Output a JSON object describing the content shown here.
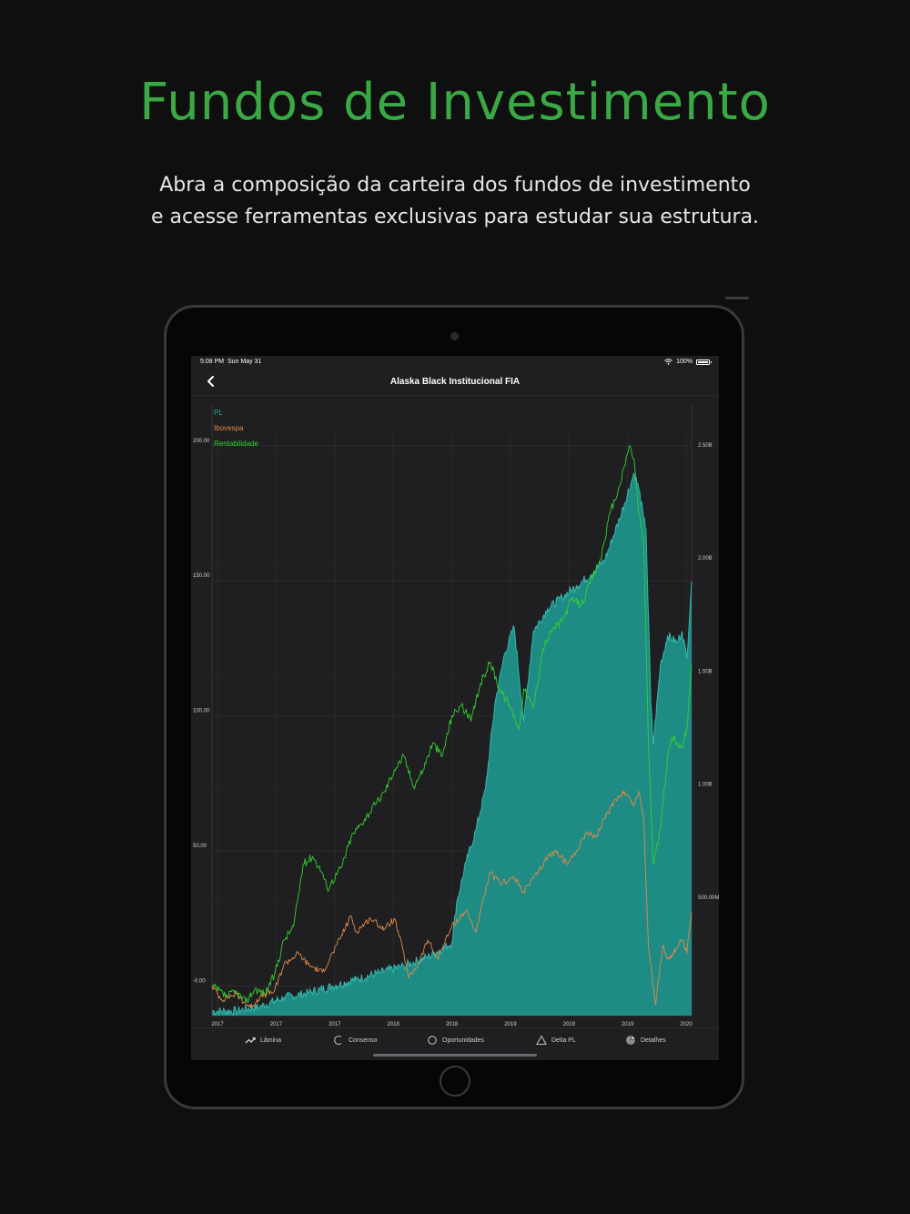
{
  "promo": {
    "title": "Fundos de Investimento",
    "subtitle_line1": "Abra a composição da carteira dos fundos de investimento",
    "subtitle_line2": "e acesse ferramentas exclusivas para estudar sua estrutura."
  },
  "status_bar": {
    "time": "5:08 PM",
    "date": "Sun May 31",
    "battery": "100%"
  },
  "nav": {
    "title": "Alaska Black Institucional FIA",
    "back_icon": "chevron-left-icon"
  },
  "tabs": [
    {
      "label": "Lâmina",
      "icon": "trend-line-icon"
    },
    {
      "label": "Consenso",
      "icon": "arc-icon"
    },
    {
      "label": "Oportunidades",
      "icon": "circle-icon"
    },
    {
      "label": "Delta PL",
      "icon": "triangle-icon"
    },
    {
      "label": "Detalhes",
      "icon": "pie-icon"
    }
  ],
  "colors": {
    "pl": "#1fa59a",
    "ibovespa": "#e08a4a",
    "rentabilidade": "#33d12f",
    "accent": "#3aa845"
  },
  "chart_data": {
    "type": "line",
    "legend_position": "top-left",
    "grid": true,
    "x_ticks": [
      "2017",
      "2017",
      "2017",
      "2018",
      "2018",
      "2019",
      "2019",
      "2019",
      "2020"
    ],
    "y_left_ticks": [
      "-0.00",
      "50.00",
      "100.00",
      "150.00",
      "200.00"
    ],
    "y_left_values": [
      0,
      50,
      100,
      150,
      200
    ],
    "y_left_range": [
      -11,
      205
    ],
    "y_right_ticks": [
      "500.00M",
      "1.00B",
      "1.50B",
      "2.00B",
      "2.50B"
    ],
    "y_right_values": [
      0.5,
      1.0,
      1.5,
      2.0,
      2.5
    ],
    "y_right_range": [
      0,
      2.58
    ],
    "t_range": [
      0,
      100
    ],
    "series": [
      {
        "name": "PL",
        "axis": "right",
        "kind": "area",
        "points": [
          [
            0,
            0.02
          ],
          [
            5,
            0.02
          ],
          [
            10,
            0.04
          ],
          [
            15,
            0.08
          ],
          [
            20,
            0.1
          ],
          [
            25,
            0.13
          ],
          [
            30,
            0.16
          ],
          [
            35,
            0.19
          ],
          [
            40,
            0.22
          ],
          [
            45,
            0.26
          ],
          [
            50,
            0.32
          ],
          [
            51,
            0.5
          ],
          [
            53,
            0.68
          ],
          [
            55,
            0.82
          ],
          [
            57,
            1.0
          ],
          [
            59,
            1.38
          ],
          [
            61,
            1.6
          ],
          [
            63,
            1.72
          ],
          [
            65,
            1.3
          ],
          [
            67,
            1.7
          ],
          [
            70,
            1.8
          ],
          [
            73,
            1.85
          ],
          [
            76,
            1.9
          ],
          [
            79,
            1.95
          ],
          [
            82,
            2.02
          ],
          [
            85,
            2.2
          ],
          [
            88,
            2.4
          ],
          [
            89,
            2.33
          ],
          [
            90,
            2.2
          ],
          [
            90.5,
            2.15
          ],
          [
            91.5,
            1.38
          ],
          [
            92,
            1.2
          ],
          [
            93.5,
            1.55
          ],
          [
            95,
            1.68
          ],
          [
            97,
            1.65
          ],
          [
            98,
            1.7
          ],
          [
            99,
            1.58
          ],
          [
            100,
            1.92
          ]
        ]
      },
      {
        "name": "Ibovespa",
        "axis": "left",
        "kind": "line",
        "points": [
          [
            0,
            0
          ],
          [
            2,
            -5
          ],
          [
            5,
            -3
          ],
          [
            8,
            -8
          ],
          [
            10,
            -4
          ],
          [
            13,
            -2
          ],
          [
            15,
            8
          ],
          [
            18,
            12
          ],
          [
            20,
            8
          ],
          [
            23,
            5
          ],
          [
            26,
            15
          ],
          [
            29,
            26
          ],
          [
            30,
            20
          ],
          [
            33,
            25
          ],
          [
            36,
            21
          ],
          [
            38,
            25
          ],
          [
            40,
            12
          ],
          [
            41,
            3
          ],
          [
            43,
            8
          ],
          [
            45,
            17
          ],
          [
            47,
            10
          ],
          [
            50,
            22
          ],
          [
            53,
            28
          ],
          [
            55,
            20
          ],
          [
            58,
            42
          ],
          [
            60,
            38
          ],
          [
            63,
            40
          ],
          [
            65,
            35
          ],
          [
            68,
            42
          ],
          [
            70,
            48
          ],
          [
            72,
            50
          ],
          [
            74,
            45
          ],
          [
            76,
            50
          ],
          [
            78,
            57
          ],
          [
            80,
            55
          ],
          [
            82,
            62
          ],
          [
            84,
            69
          ],
          [
            86,
            72
          ],
          [
            88,
            67
          ],
          [
            89,
            72
          ],
          [
            90,
            62
          ],
          [
            91,
            15
          ],
          [
            92.5,
            -7
          ],
          [
            94,
            15
          ],
          [
            95,
            10
          ],
          [
            97,
            14
          ],
          [
            98,
            17
          ],
          [
            99,
            12
          ],
          [
            100,
            27
          ]
        ]
      },
      {
        "name": "Rentabilidade",
        "axis": "left",
        "kind": "line",
        "points": [
          [
            0,
            0
          ],
          [
            3,
            -4
          ],
          [
            5,
            -2
          ],
          [
            7,
            -6
          ],
          [
            9,
            -1
          ],
          [
            11,
            -3
          ],
          [
            13,
            4
          ],
          [
            15,
            17
          ],
          [
            17,
            22
          ],
          [
            19,
            45
          ],
          [
            21,
            48
          ],
          [
            23,
            42
          ],
          [
            24,
            36
          ],
          [
            27,
            44
          ],
          [
            29,
            55
          ],
          [
            31,
            60
          ],
          [
            34,
            67
          ],
          [
            36,
            72
          ],
          [
            38,
            80
          ],
          [
            40,
            85
          ],
          [
            42,
            74
          ],
          [
            44,
            80
          ],
          [
            46,
            90
          ],
          [
            48,
            85
          ],
          [
            50,
            100
          ],
          [
            52,
            104
          ],
          [
            54,
            98
          ],
          [
            56,
            112
          ],
          [
            58,
            120
          ],
          [
            60,
            110
          ],
          [
            62,
            104
          ],
          [
            63,
            100
          ],
          [
            64,
            95
          ],
          [
            65,
            110
          ],
          [
            67,
            103
          ],
          [
            69,
            125
          ],
          [
            71,
            132
          ],
          [
            73,
            135
          ],
          [
            75,
            143
          ],
          [
            77,
            141
          ],
          [
            79,
            150
          ],
          [
            81,
            158
          ],
          [
            83,
            175
          ],
          [
            85,
            185
          ],
          [
            87,
            200
          ],
          [
            88,
            195
          ],
          [
            89,
            175
          ],
          [
            90,
            165
          ],
          [
            91,
            90
          ],
          [
            92,
            45
          ],
          [
            93.5,
            58
          ],
          [
            95,
            85
          ],
          [
            96,
            92
          ],
          [
            97,
            90
          ],
          [
            98,
            88
          ],
          [
            99,
            95
          ],
          [
            100,
            119
          ]
        ]
      }
    ]
  }
}
